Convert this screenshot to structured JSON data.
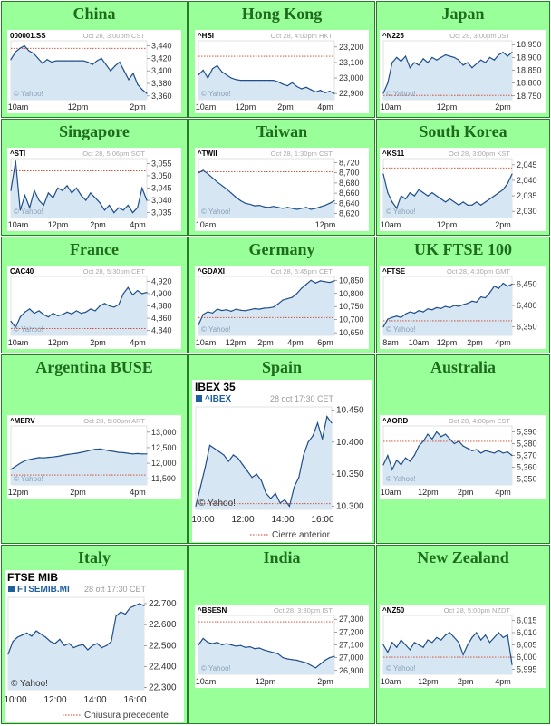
{
  "markets": [
    {
      "region": "China",
      "style": "yahoo",
      "symbol": "000001.SS",
      "stamp": "Oct 28, 3:00pm CST",
      "watermark": "© Yahoo!",
      "chart_data": {
        "type": "line",
        "x_labels": [
          "10am",
          "12pm",
          "2pm"
        ],
        "y_ticks": [
          "3,440",
          "3,420",
          "3,400",
          "3,380",
          "3,360"
        ],
        "ylim": [
          3354,
          3448
        ],
        "prev_close": 3436,
        "values": [
          3418,
          3430,
          3436,
          3440,
          3432,
          3428,
          3420,
          3412,
          3418,
          3414,
          3416,
          3416,
          3416,
          3416,
          3416,
          3416,
          3416,
          3414,
          3410,
          3416,
          3420,
          3410,
          3400,
          3408,
          3414,
          3400,
          3386,
          3396,
          3378,
          3370,
          3364
        ]
      }
    },
    {
      "region": "Hong Kong",
      "style": "yahoo",
      "symbol": "^HSI",
      "stamp": "Oct 28, 4:00pm HKT",
      "watermark": "© Yahoo!",
      "chart_data": {
        "type": "line",
        "x_labels": [
          "10am",
          "12pm",
          "2pm",
          "4pm"
        ],
        "y_ticks": [
          "23,200",
          "23,100",
          "23,000",
          "22,900"
        ],
        "ylim": [
          22860,
          23240
        ],
        "prev_close": 23140,
        "values": [
          23020,
          23050,
          23000,
          23060,
          23080,
          23040,
          23020,
          23000,
          22990,
          22985,
          22985,
          22985,
          22985,
          22985,
          22985,
          22985,
          22985,
          22975,
          22960,
          22950,
          22970,
          22945,
          22930,
          22940,
          22925,
          22910,
          22920,
          22905,
          22915,
          22900
        ]
      }
    },
    {
      "region": "Japan",
      "style": "yahoo",
      "symbol": "^N225",
      "stamp": "Oct 28, 3:00pm JST",
      "watermark": "© Yahoo!",
      "chart_data": {
        "type": "line",
        "x_labels": [
          "10am",
          "12pm",
          "2pm"
        ],
        "y_ticks": [
          "18,950",
          "18,900",
          "18,850",
          "18,800",
          "18,750"
        ],
        "ylim": [
          18735,
          18965
        ],
        "prev_close": 18752,
        "values": [
          18760,
          18800,
          18880,
          18900,
          18885,
          18905,
          18860,
          18880,
          18870,
          18895,
          18880,
          18900,
          18890,
          18900,
          18910,
          18905,
          18900,
          18890,
          18870,
          18880,
          18860,
          18875,
          18890,
          18880,
          18900,
          18890,
          18910,
          18920,
          18905,
          18920
        ]
      }
    },
    {
      "region": "Singapore",
      "style": "yahoo",
      "symbol": "^STI",
      "stamp": "Oct 28, 5:06pm SGT",
      "watermark": "© Yahoo!",
      "chart_data": {
        "type": "line",
        "x_labels": [
          "10am",
          "12pm",
          "2pm",
          "4pm"
        ],
        "y_ticks": [
          "3,055",
          "3,050",
          "3,045",
          "3,040",
          "3,035"
        ],
        "ylim": [
          3033,
          3057
        ],
        "prev_close": 3052,
        "values": [
          3044,
          3056,
          3036,
          3042,
          3037,
          3044,
          3040,
          3038,
          3043,
          3041,
          3045,
          3044,
          3046,
          3043,
          3045,
          3042,
          3040,
          3043,
          3041,
          3039,
          3036,
          3038,
          3035,
          3037,
          3036,
          3038,
          3035,
          3037,
          3045,
          3040
        ]
      }
    },
    {
      "region": "Taiwan",
      "style": "yahoo",
      "symbol": "^TWII",
      "stamp": "Oct 28, 1:30pm CST",
      "watermark": "© Yahoo!",
      "chart_data": {
        "type": "line",
        "x_labels": [
          "10am",
          "12pm"
        ],
        "y_ticks": [
          "8,720",
          "8,700",
          "8,680",
          "8,660",
          "8,640",
          "8,620"
        ],
        "ylim": [
          8612,
          8728
        ],
        "prev_close": 8702,
        "values": [
          8700,
          8705,
          8698,
          8690,
          8682,
          8675,
          8668,
          8660,
          8652,
          8645,
          8640,
          8638,
          8635,
          8636,
          8633,
          8632,
          8634,
          8632,
          8630,
          8632,
          8630,
          8628,
          8630,
          8632,
          8628,
          8630,
          8633,
          8636,
          8640,
          8645
        ]
      }
    },
    {
      "region": "South Korea",
      "style": "yahoo",
      "symbol": "^KS11",
      "stamp": "Oct 28, 3:00pm KST",
      "watermark": "© Yahoo!",
      "chart_data": {
        "type": "line",
        "x_labels": [
          "10am",
          "12pm",
          "2pm"
        ],
        "y_ticks": [
          "2,045",
          "2,040",
          "2,035",
          "2,030"
        ],
        "ylim": [
          2028,
          2047
        ],
        "prev_close": 2044,
        "values": [
          2042,
          2036,
          2033,
          2031,
          2035,
          2034,
          2036,
          2035,
          2037,
          2036,
          2035,
          2036,
          2035,
          2034,
          2033,
          2034,
          2033,
          2032,
          2033,
          2032,
          2032,
          2033,
          2032,
          2033,
          2034,
          2035,
          2036,
          2037,
          2039,
          2042
        ]
      }
    },
    {
      "region": "France",
      "style": "yahoo",
      "symbol": "CAC40",
      "stamp": "Oct 28, 5:30pm CET",
      "watermark": "© Yahoo!",
      "chart_data": {
        "type": "line",
        "x_labels": [
          "10am",
          "12pm",
          "2pm",
          "4pm"
        ],
        "y_ticks": [
          "4,920",
          "4,900",
          "4,880",
          "4,860",
          "4,840"
        ],
        "ylim": [
          4832,
          4928
        ],
        "prev_close": 4843,
        "values": [
          4855,
          4845,
          4862,
          4870,
          4875,
          4868,
          4872,
          4866,
          4862,
          4868,
          4864,
          4866,
          4870,
          4867,
          4872,
          4868,
          4870,
          4875,
          4872,
          4880,
          4884,
          4880,
          4878,
          4882,
          4900,
          4910,
          4898,
          4905,
          4900,
          4902
        ]
      }
    },
    {
      "region": "Germany",
      "style": "yahoo",
      "symbol": "^GDAXI",
      "stamp": "Oct 28, 5:45pm CET",
      "watermark": "© Yahoo!",
      "chart_data": {
        "type": "line",
        "x_labels": [
          "10am",
          "12pm",
          "2pm",
          "4pm",
          "6pm"
        ],
        "y_ticks": [
          "10,850",
          "10,800",
          "10,750",
          "10,700",
          "10,650"
        ],
        "ylim": [
          10640,
          10865
        ],
        "prev_close": 10708,
        "values": [
          10680,
          10720,
          10730,
          10725,
          10740,
          10735,
          10738,
          10732,
          10740,
          10736,
          10734,
          10738,
          10742,
          10740,
          10744,
          10745,
          10748,
          10760,
          10775,
          10780,
          10785,
          10800,
          10820,
          10835,
          10850,
          10840,
          10848,
          10845,
          10842,
          10848
        ]
      }
    },
    {
      "region": "UK FTSE 100",
      "style": "yahoo",
      "symbol": "^FTSE",
      "stamp": "Oct 28, 4:30pm GMT",
      "watermark": "© Yahoo!",
      "chart_data": {
        "type": "line",
        "x_labels": [
          "8am",
          "10am",
          "12pm",
          "2pm",
          "4pm"
        ],
        "y_ticks": [
          "6,450",
          "6,400",
          "6,350"
        ],
        "ylim": [
          6330,
          6468
        ],
        "prev_close": 6364,
        "values": [
          6350,
          6368,
          6372,
          6375,
          6372,
          6380,
          6385,
          6382,
          6388,
          6385,
          6392,
          6390,
          6395,
          6393,
          6398,
          6395,
          6400,
          6398,
          6402,
          6405,
          6410,
          6408,
          6420,
          6418,
          6430,
          6445,
          6440,
          6452,
          6445,
          6450
        ]
      }
    },
    {
      "region": "Argentina BUSE",
      "style": "yahoo",
      "symbol": "^MERV",
      "stamp": "Oct 28, 5:00pm ART",
      "watermark": "© Yahoo!",
      "chart_data": {
        "type": "line",
        "x_labels": [
          "12pm",
          "2pm",
          "4pm"
        ],
        "y_ticks": [
          "13,000",
          "12,500",
          "12,000",
          "11,500"
        ],
        "ylim": [
          11300,
          13200
        ],
        "prev_close": 11620,
        "values": [
          11800,
          11900,
          12000,
          12080,
          12120,
          12150,
          12180,
          12170,
          12190,
          12200,
          12220,
          12250,
          12280,
          12300,
          12320,
          12350,
          12380,
          12420,
          12450,
          12460,
          12430,
          12400,
          12380,
          12350,
          12340,
          12320,
          12300,
          12310,
          12300,
          12300
        ]
      }
    },
    {
      "region": "Spain",
      "style": "big",
      "header": "IBEX 35",
      "symbol": "^IBEX",
      "stamp": "28 oct 17:30 CET",
      "watermark": "© Yahoo!",
      "legend": "Cierre anterior",
      "chart_data": {
        "type": "line",
        "x_labels": [
          "10:00",
          "12:00",
          "14:00",
          "16:00"
        ],
        "y_ticks": [
          "10.450",
          "10.400",
          "10.350",
          "10.300"
        ],
        "ylim": [
          10295,
          10455
        ],
        "prev_close": 10304,
        "values": [
          10300,
          10330,
          10360,
          10395,
          10390,
          10385,
          10380,
          10370,
          10380,
          10375,
          10365,
          10355,
          10345,
          10350,
          10340,
          10320,
          10312,
          10320,
          10305,
          10310,
          10300,
          10330,
          10345,
          10380,
          10400,
          10410,
          10430,
          10405,
          10440,
          10430
        ]
      }
    },
    {
      "region": "Australia",
      "style": "yahoo",
      "symbol": "^AORD",
      "stamp": "Oct 28, 4:00pm EST",
      "watermark": "© Yahoo!",
      "chart_data": {
        "type": "line",
        "x_labels": [
          "10am",
          "12pm",
          "2pm",
          "4pm"
        ],
        "y_ticks": [
          "5,390",
          "5,380",
          "5,370",
          "5,360",
          "5,350"
        ],
        "ylim": [
          5345,
          5395
        ],
        "prev_close": 5382,
        "values": [
          5362,
          5370,
          5358,
          5366,
          5362,
          5368,
          5365,
          5370,
          5378,
          5382,
          5388,
          5384,
          5390,
          5386,
          5388,
          5384,
          5380,
          5382,
          5378,
          5376,
          5374,
          5375,
          5372,
          5374,
          5373,
          5372,
          5374,
          5372,
          5373,
          5370
        ]
      }
    },
    {
      "region": "Italy",
      "style": "big",
      "header": "FTSE MIB",
      "symbol": "FTSEMIB.MI",
      "stamp": "28 ott 17:30 CET",
      "watermark": "© Yahoo!",
      "legend": "Chiusura precedente",
      "chart_data": {
        "type": "line",
        "x_labels": [
          "10:00",
          "12:00",
          "14:00",
          "16:00"
        ],
        "y_ticks": [
          "22.700",
          "22.600",
          "22.500",
          "22.400",
          "22.300"
        ],
        "ylim": [
          22290,
          22730
        ],
        "prev_close": 22370,
        "values": [
          22460,
          22520,
          22540,
          22550,
          22560,
          22545,
          22570,
          22555,
          22540,
          22520,
          22510,
          22530,
          22500,
          22510,
          22490,
          22500,
          22505,
          22480,
          22500,
          22510,
          22490,
          22500,
          22520,
          22640,
          22660,
          22650,
          22680,
          22690,
          22700,
          22690
        ]
      }
    },
    {
      "region": "India",
      "style": "yahoo",
      "symbol": "^BSESN",
      "stamp": "Oct 28, 3:30pm IST",
      "watermark": "© Yahoo!",
      "chart_data": {
        "type": "line",
        "x_labels": [
          "10am",
          "12pm",
          "2pm"
        ],
        "y_ticks": [
          "27,300",
          "27,200",
          "27,100",
          "27,000",
          "26,900"
        ],
        "ylim": [
          26870,
          27330
        ],
        "prev_close": 27280,
        "values": [
          27100,
          27150,
          27120,
          27110,
          27120,
          27100,
          27110,
          27100,
          27090,
          27095,
          27080,
          27085,
          27070,
          27075,
          27060,
          27050,
          27040,
          27030,
          27000,
          26990,
          26985,
          26980,
          26970,
          26960,
          26940,
          26920,
          26950,
          26980,
          27000,
          27010
        ]
      }
    },
    {
      "region": "New Zealand",
      "style": "yahoo",
      "symbol": "^NZ50",
      "stamp": "Oct 28, 5:00pm NZDT",
      "watermark": "© Yahoo!",
      "chart_data": {
        "type": "line",
        "x_labels": [
          "10am",
          "12pm",
          "2pm",
          "4pm"
        ],
        "y_ticks": [
          "6,015",
          "6,010",
          "6,005",
          "6,000",
          "5,995"
        ],
        "ylim": [
          5993,
          6017
        ],
        "prev_close": 6000,
        "values": [
          6005,
          6002,
          6006,
          6004,
          6007,
          6005,
          6003,
          6006,
          6005,
          6004,
          6007,
          6006,
          6008,
          6007,
          6009,
          6010,
          6008,
          6006,
          6001,
          6005,
          6008,
          6010,
          6007,
          6009,
          6006,
          6008,
          6010,
          6008,
          6009,
          5997
        ]
      }
    }
  ]
}
